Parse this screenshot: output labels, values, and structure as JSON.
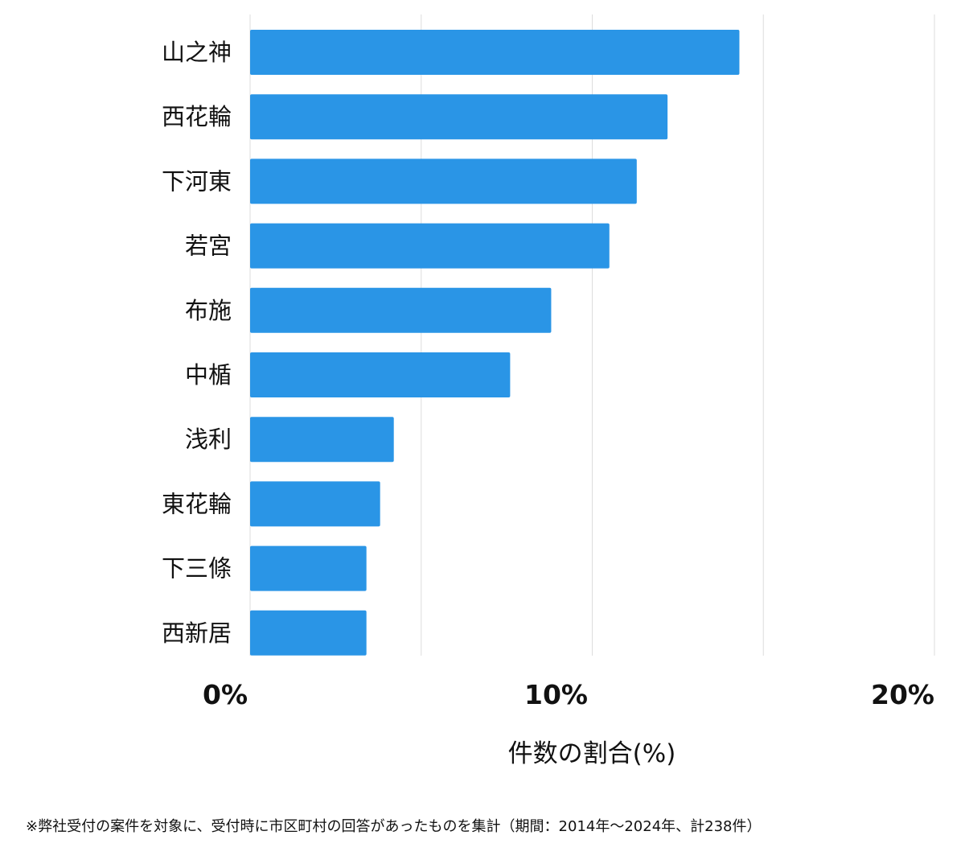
{
  "chart_data": {
    "type": "bar",
    "orientation": "horizontal",
    "categories": [
      "山之神",
      "西花輪",
      "下河東",
      "若宮",
      "布施",
      "中楯",
      "浅利",
      "東花輪",
      "下三條",
      "西新居"
    ],
    "values": [
      14.3,
      12.2,
      11.3,
      10.5,
      8.8,
      7.6,
      4.2,
      3.8,
      3.4,
      3.4
    ],
    "xlim": [
      0,
      20
    ],
    "gridlines": [
      0,
      5,
      10,
      15,
      20
    ],
    "tick_values": [
      0,
      10,
      20
    ],
    "tick_labels": [
      "0%",
      "10%",
      "20%"
    ],
    "xlabel": "件数の割合(%)",
    "grid": true,
    "bar_color": "#2a95e6",
    "grid_color": "#dddddd"
  },
  "footnote": "※弊社受付の案件を対象に、受付時に市区町村の回答があったものを集計（期間：2014年～2024年、計238件）"
}
